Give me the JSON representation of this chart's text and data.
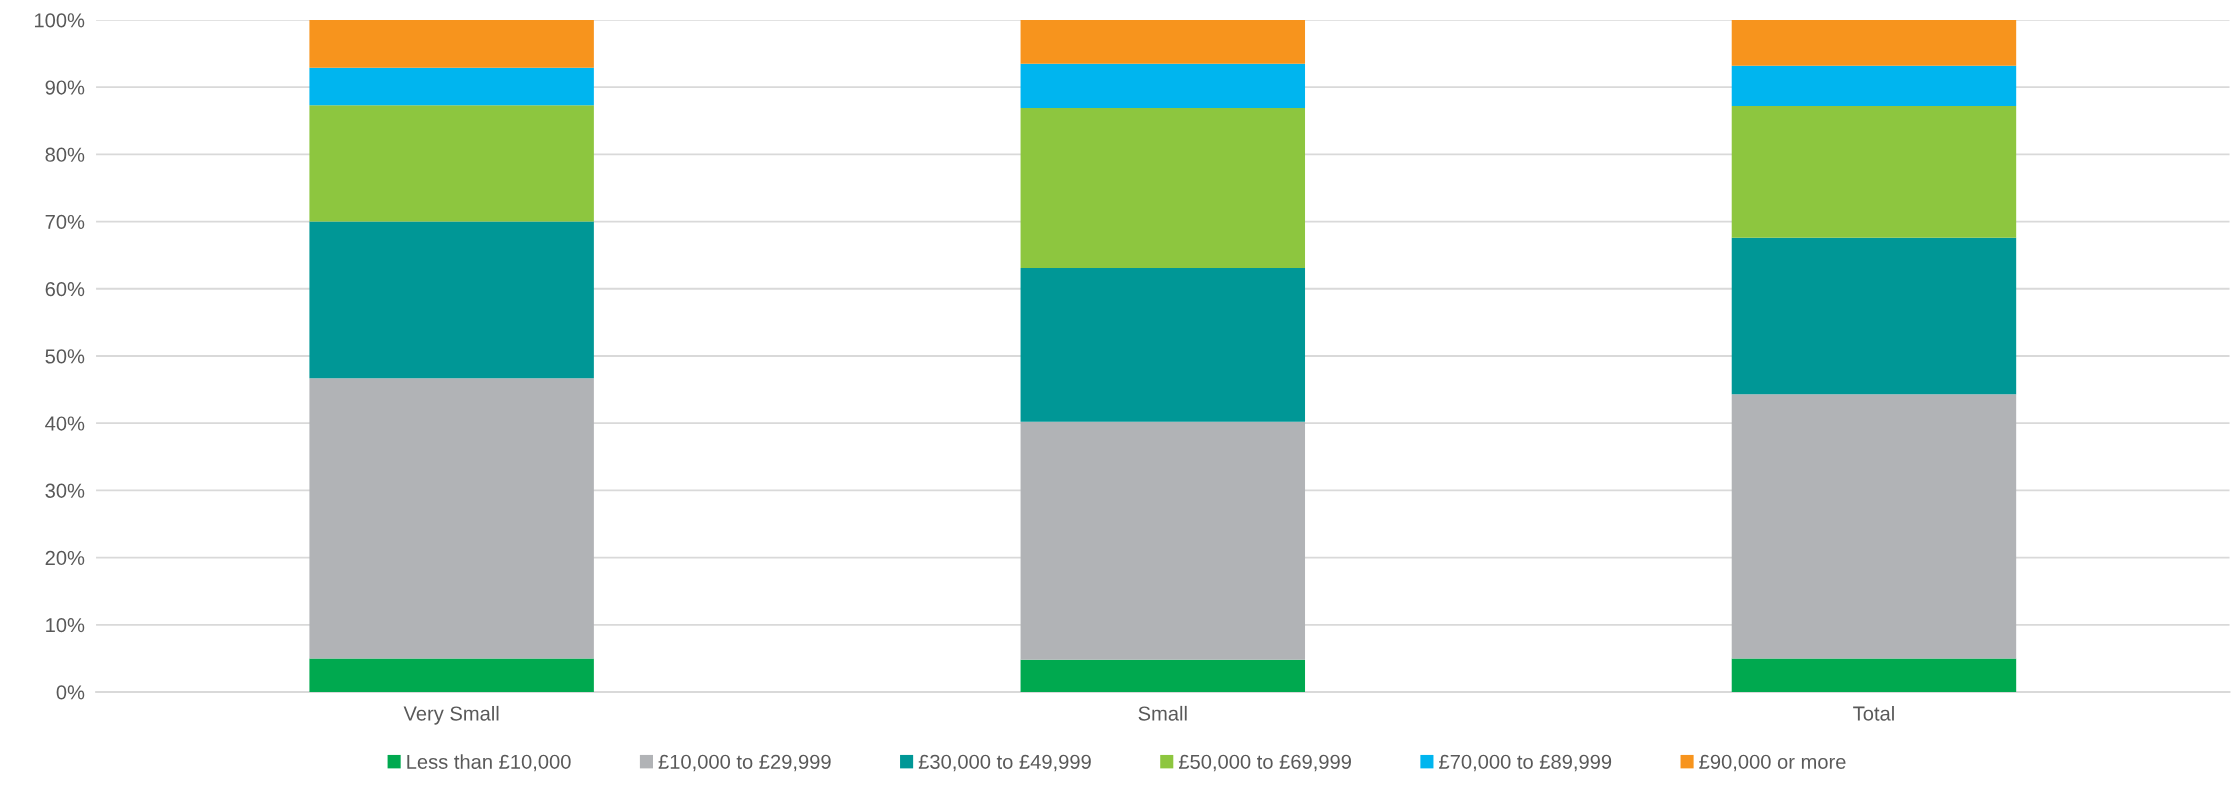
{
  "chart_data": {
    "type": "bar",
    "stacked": true,
    "categories": [
      "Very Small",
      "Small",
      "Total"
    ],
    "series": [
      {
        "name": "Less than £10,000",
        "color": "#00a94f",
        "values": [
          5.0,
          4.8,
          5.0
        ]
      },
      {
        "name": "£10,000 to £29,999",
        "color": "#b1b3b6",
        "values": [
          41.7,
          35.4,
          39.3
        ]
      },
      {
        "name": "£30,000 to £49,999",
        "color": "#009796",
        "values": [
          23.3,
          22.9,
          23.3
        ]
      },
      {
        "name": "£50,000 to £69,999",
        "color": "#8dc63f",
        "values": [
          17.3,
          23.8,
          19.6
        ]
      },
      {
        "name": "£70,000 to £89,999",
        "color": "#00b5ef",
        "values": [
          5.6,
          6.6,
          6.0
        ]
      },
      {
        "name": "£90,000 or more",
        "color": "#f7941d",
        "values": [
          7.1,
          6.5,
          6.8
        ]
      }
    ],
    "ylim": [
      0,
      100
    ],
    "yticks": [
      {
        "value": 0,
        "label": "0%"
      },
      {
        "value": 10,
        "label": "10%"
      },
      {
        "value": 20,
        "label": "20%"
      },
      {
        "value": 30,
        "label": "30%"
      },
      {
        "value": 40,
        "label": "40%"
      },
      {
        "value": 50,
        "label": "50%"
      },
      {
        "value": 60,
        "label": "60%"
      },
      {
        "value": 70,
        "label": "70%"
      },
      {
        "value": 80,
        "label": "80%"
      },
      {
        "value": 90,
        "label": "90%"
      },
      {
        "value": 100,
        "label": "100%"
      }
    ],
    "grid": "y",
    "legend": "bottom"
  }
}
